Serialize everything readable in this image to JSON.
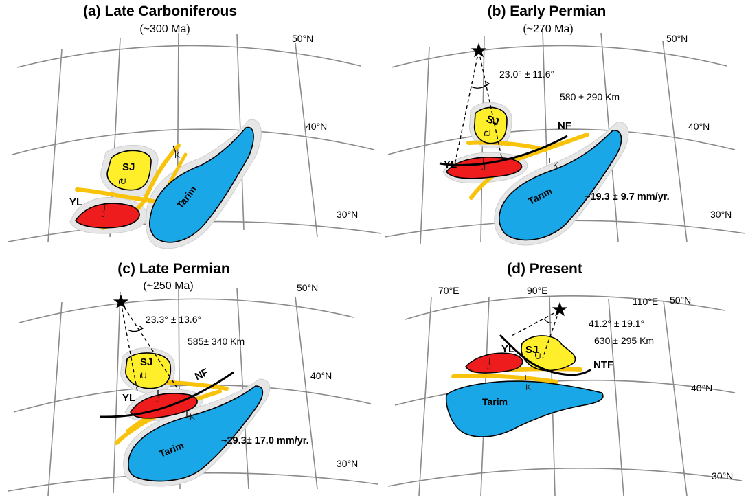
{
  "colors": {
    "tarim": "#1aa7e8",
    "sj": "#ffef2a",
    "yl": "#ee1c1c",
    "belt": "#f9c20b",
    "grid": "#8a8a8a",
    "halo": "#e6e6e6"
  },
  "icons": {
    "pole": "star-icon"
  },
  "panels": [
    {
      "title": "(a) Late Carboniferous",
      "age": "(~300 Ma)",
      "lat_labels": [
        "50°N",
        "40°N",
        "30°N"
      ],
      "blocks": {
        "sj": "SJ",
        "yl": "YL",
        "tarim": "Tarim"
      },
      "sites": {
        "u": "U",
        "j": "J",
        "k": "K"
      }
    },
    {
      "title": "(b) Early Permian",
      "age": "(~270 Ma)",
      "lat_labels": [
        "50°N",
        "40°N",
        "30°N"
      ],
      "blocks": {
        "sj": "SJ",
        "yl": "YL",
        "tarim": "Tarim"
      },
      "sites": {
        "u": "U",
        "j": "J",
        "k": "K"
      },
      "fault": "NF",
      "angle": "23.0° ± 11.6°",
      "distance": "580 ± 290 Km",
      "rate": "~19.3 ± 9.7 mm/yr."
    },
    {
      "title": "(c) Late Permian",
      "age": "(~250 Ma)",
      "lat_labels": [
        "50°N",
        "40°N",
        "30°N"
      ],
      "blocks": {
        "sj": "SJ",
        "yl": "YL",
        "tarim": "Tarim"
      },
      "sites": {
        "u": "U",
        "j": "J",
        "k": "K"
      },
      "fault": "NF",
      "angle": "23.3° ± 13.6°",
      "distance": "585± 340 Km",
      "rate": "~29.3± 17.0 mm/yr."
    },
    {
      "title": "(d) Present",
      "lon_labels": [
        "70°E",
        "90°E",
        "110°E"
      ],
      "lat_labels": [
        "50°N",
        "40°N",
        "30°N"
      ],
      "blocks": {
        "sj": "SJ",
        "yl": "YL",
        "tarim": "Tarim"
      },
      "sites": {
        "u": "U",
        "j": "J",
        "k": "K"
      },
      "fault": "NTF",
      "angle": "41.2° ± 19.1°",
      "distance": "630 ± 295 Km"
    }
  ]
}
